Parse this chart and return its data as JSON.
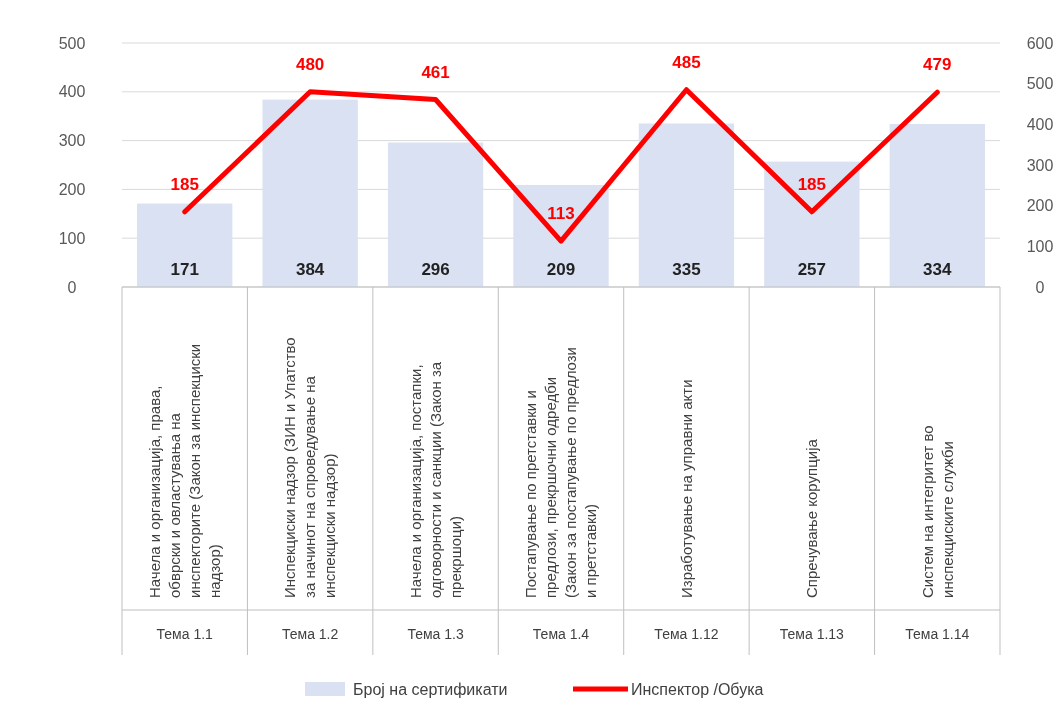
{
  "chart_data": {
    "type": "bar",
    "categories": [
      "Начела и организација, права, обврски и овластувања на инспекторите (Закон за инспекциски надзор)\nТема 1.1",
      "Инспекциски надзор (ЗИН и Упатство за начинот на спроведување на инспекциски надзор)\nТема 1.2",
      "Начела и организација, постапки, одговорности и санкции (Закон за прекршоци)\nТема 1.3",
      "Постапување по претставки и предлози, прекршочни одредби (Закон за постапување по предлози и претставки)\nТема 1.4",
      "Изработување на управни акти\nТема 1.12",
      "Спречување корупција\nТема 1.13",
      "Систем на интегритет во инспекциските служби\nТема 1.14"
    ],
    "series": [
      {
        "name": "Број на сертификати",
        "color": "#d9e1f2",
        "values": [
          171,
          384,
          296,
          209,
          335,
          257,
          334
        ]
      },
      {
        "name": "Инспектор /Обука",
        "type": "line",
        "axis": "y2",
        "color": "#ff0000",
        "values": [
          185,
          480,
          461,
          113,
          485,
          185,
          479
        ]
      }
    ],
    "ylim": [
      0,
      500
    ],
    "yticks": [
      0,
      100,
      200,
      300,
      400,
      500
    ],
    "y2lim": [
      0,
      600
    ],
    "y2ticks": [
      0,
      100,
      200,
      300,
      400,
      500,
      600
    ],
    "grid": "y",
    "legend": "bottom",
    "data_labels": true,
    "marker": "none"
  }
}
